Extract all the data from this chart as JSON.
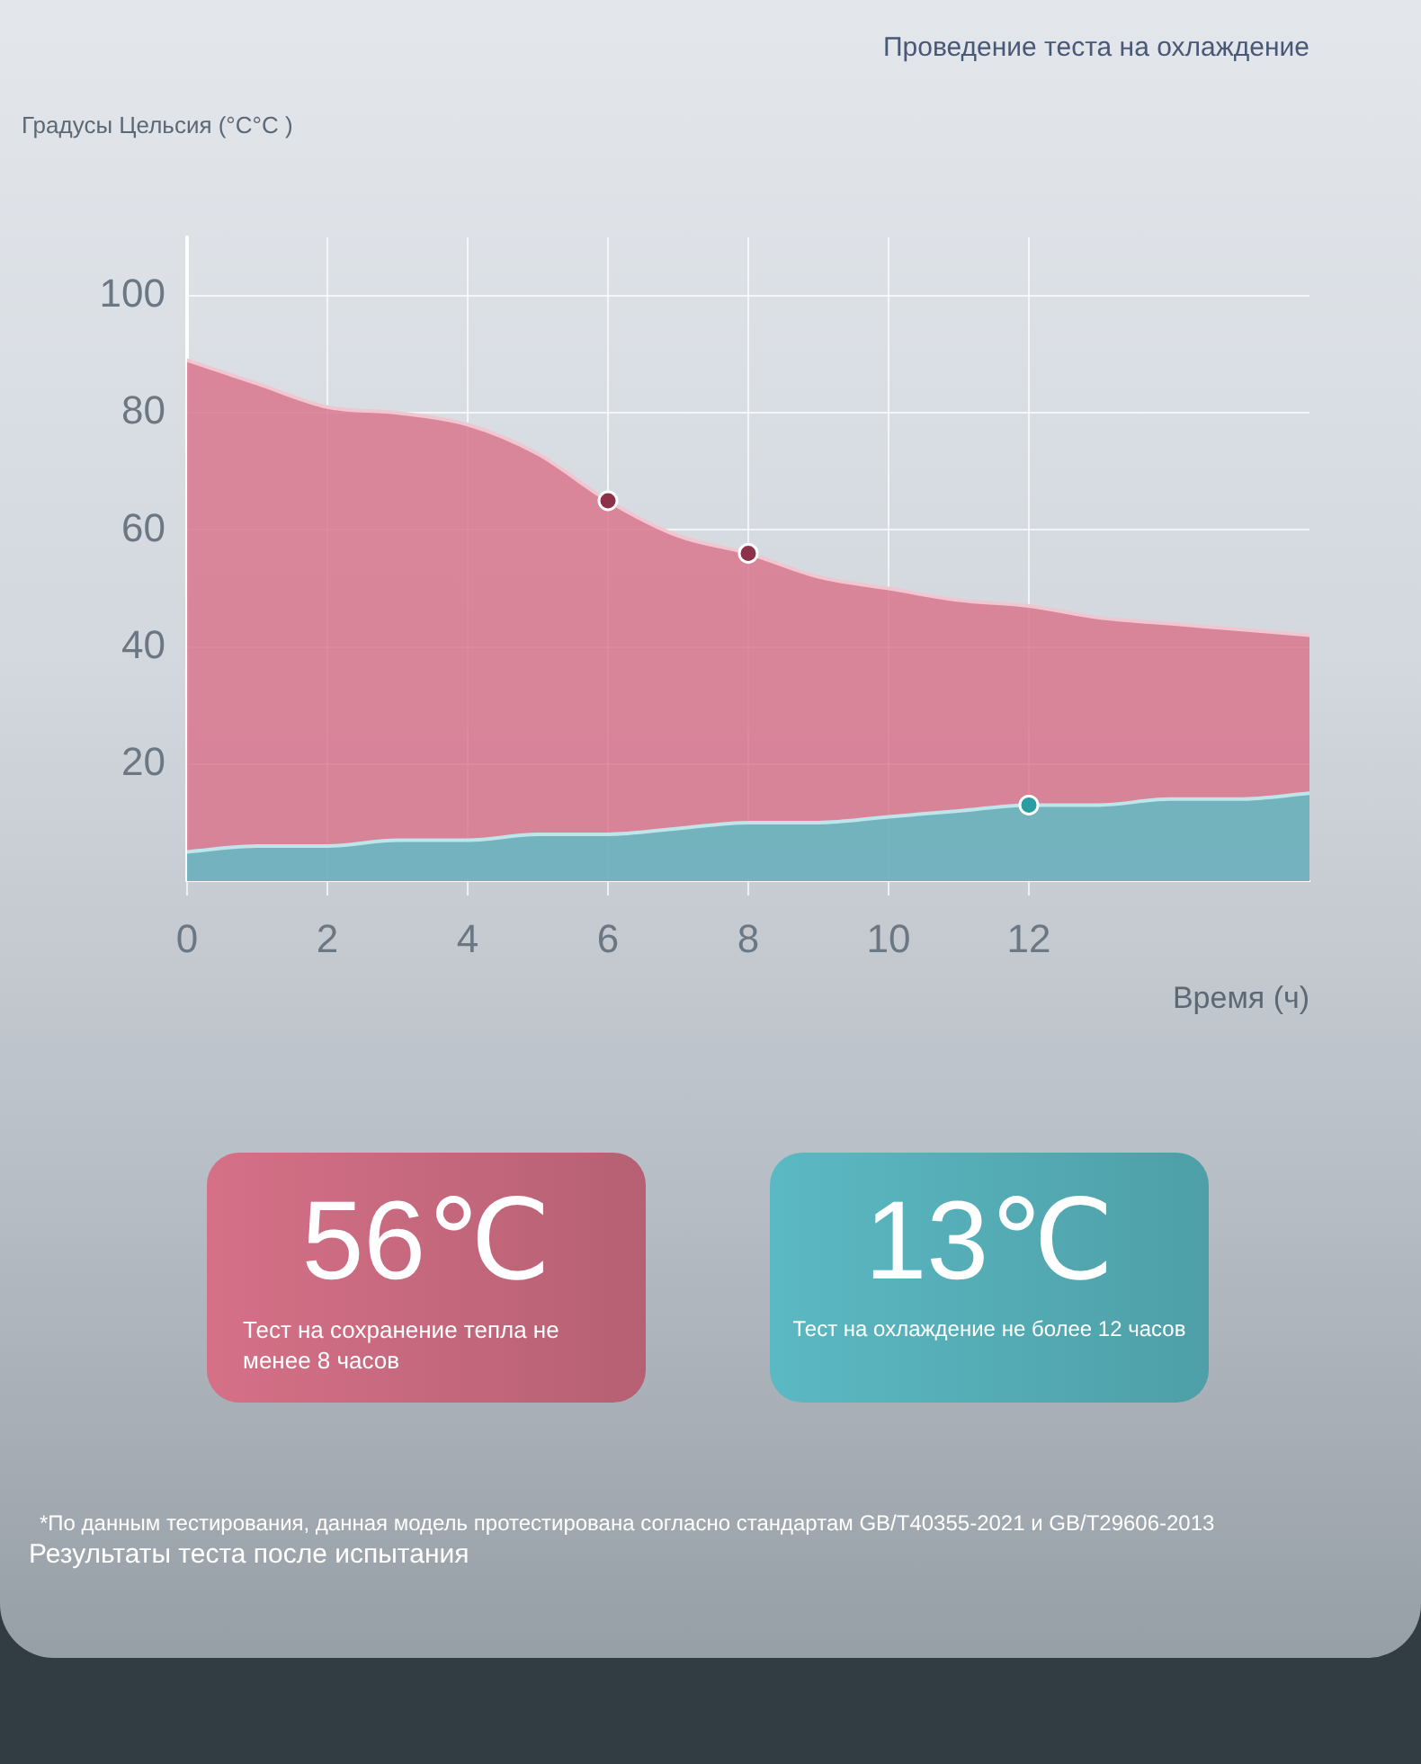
{
  "chart_data": {
    "type": "area",
    "title": "Проведение теста на охлаждение",
    "xlabel": "Время (ч)",
    "ylabel": "Градусы Цельсия (°C°C )",
    "x": [
      0,
      1,
      2,
      3,
      4,
      5,
      6,
      7,
      8,
      9,
      10,
      11,
      12,
      13,
      14,
      15,
      16
    ],
    "series": [
      {
        "color": "#d9728a",
        "values": [
          89,
          85,
          81,
          80,
          78,
          73,
          65,
          59,
          56,
          52,
          50,
          48,
          47,
          45,
          44,
          43,
          42
        ]
      },
      {
        "color": "#5dbdc7",
        "values": [
          5,
          6,
          6,
          7,
          7,
          8,
          8,
          9,
          10,
          10,
          11,
          12,
          13,
          13,
          14,
          14,
          15
        ]
      },
      {
        "type": "scatter",
        "marker": "circle",
        "color": "#8c3349",
        "x": [
          6,
          8
        ],
        "values": [
          65,
          56
        ]
      },
      {
        "type": "scatter",
        "marker": "circle",
        "color": "#2a9ea3",
        "x": [
          12
        ],
        "values": [
          13
        ]
      }
    ],
    "xlim": [
      0,
      16
    ],
    "xticks": [
      0,
      2,
      4,
      6,
      8,
      10,
      12
    ],
    "ylim": [
      0,
      110
    ],
    "yticks": [
      20,
      40,
      60,
      80,
      100
    ],
    "grid": true,
    "annotations": [
      "56℃",
      "Тест на сохранение тепла не менее 8 часов",
      "13℃",
      "Тест на охлаждение не более 12 часов",
      "*По данным тестирования, данная модель протестирована согласно стандартам GB/T40355-2021 и GB/T29606-2013",
      "Результаты теста после испытания"
    ]
  }
}
